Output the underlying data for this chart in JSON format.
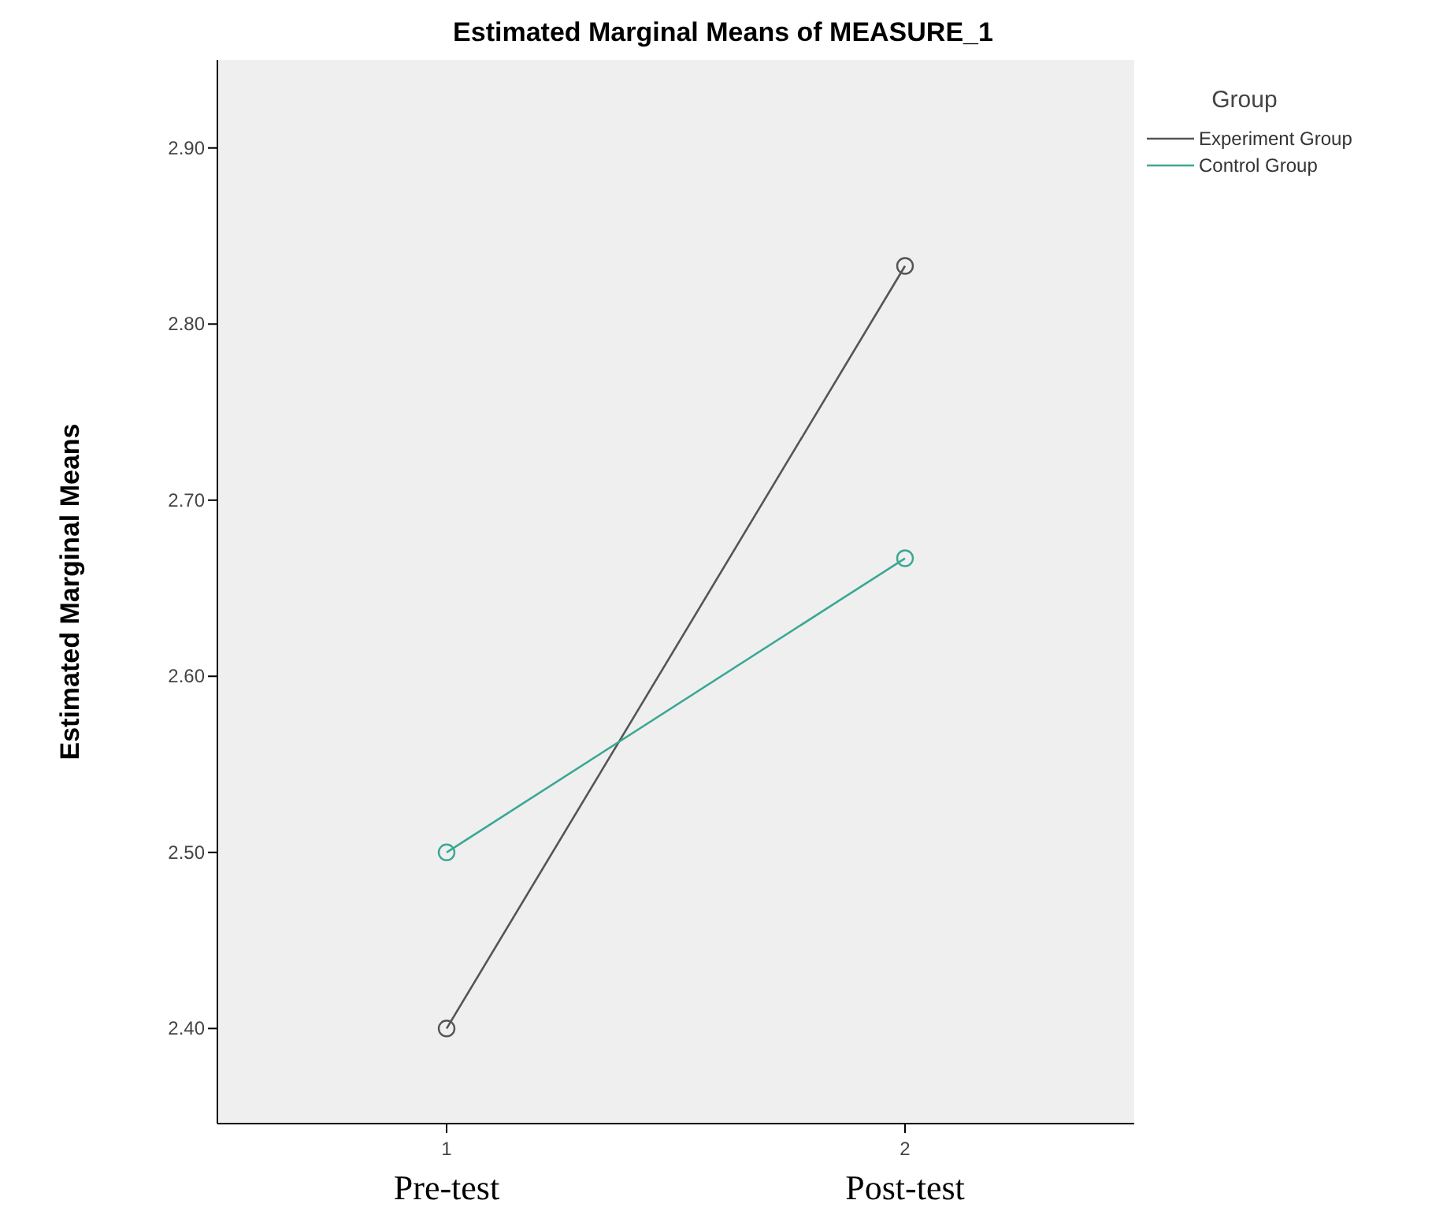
{
  "chart_data": {
    "type": "line",
    "title": "Estimated Marginal Means of MEASURE_1",
    "ylabel": "Estimated Marginal Means",
    "legend_title": "Group",
    "categories": [
      "1",
      "2"
    ],
    "series": [
      {
        "name": "Experiment Group",
        "color": "#555555",
        "values": [
          2.4,
          2.833
        ]
      },
      {
        "name": "Control Group",
        "color": "#3aa894",
        "values": [
          2.5,
          2.667
        ]
      }
    ],
    "ylim": [
      2.346,
      2.95
    ],
    "yticks": [
      {
        "value": 2.4,
        "label": "2.40"
      },
      {
        "value": 2.5,
        "label": "2.50"
      },
      {
        "value": 2.6,
        "label": "2.60"
      },
      {
        "value": 2.7,
        "label": "2.70"
      },
      {
        "value": 2.8,
        "label": "2.80"
      },
      {
        "value": 2.9,
        "label": "2.90"
      }
    ],
    "annotations": [
      "Pre-test",
      "Post-test"
    ],
    "legend": "top right",
    "marker": "circle",
    "line_style": "solid",
    "grid": false
  }
}
